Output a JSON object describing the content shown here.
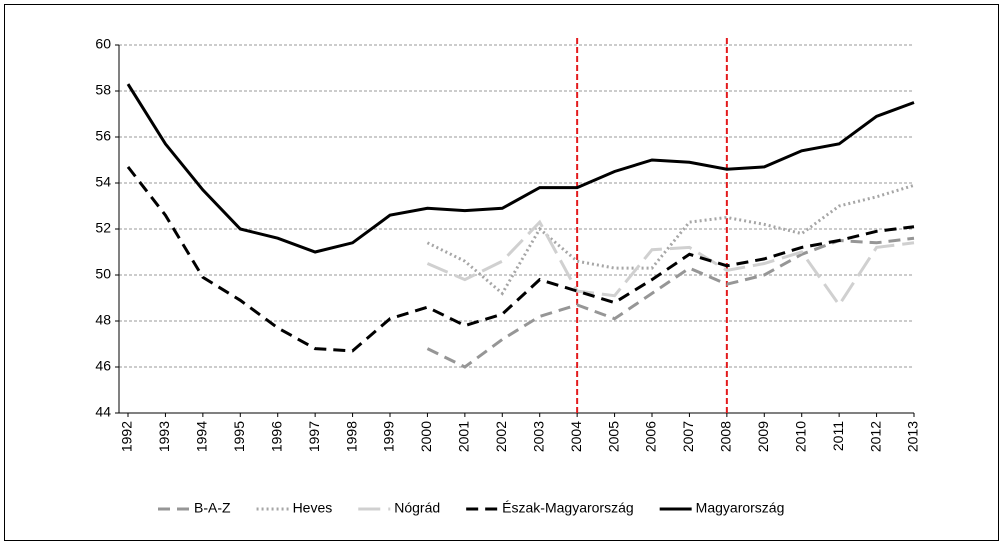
{
  "chart_data": {
    "type": "line",
    "categories": [
      "1992",
      "1993",
      "1994",
      "1995",
      "1996",
      "1997",
      "1998",
      "1999",
      "2000",
      "2001",
      "2002",
      "2003",
      "2004",
      "2005",
      "2006",
      "2007",
      "2008",
      "2009",
      "2010",
      "2011",
      "2012",
      "2013"
    ],
    "series": [
      {
        "name": "B-A-Z",
        "color": "#969696",
        "style": "dashed",
        "values": [
          null,
          null,
          null,
          null,
          null,
          null,
          null,
          null,
          46.8,
          46.0,
          47.2,
          48.2,
          48.7,
          48.1,
          49.2,
          50.3,
          49.6,
          50.0,
          50.9,
          51.5,
          51.4,
          51.6
        ]
      },
      {
        "name": "Heves",
        "color": "#a6a6a6",
        "style": "dotted",
        "values": [
          null,
          null,
          null,
          null,
          null,
          null,
          null,
          null,
          51.4,
          50.6,
          49.2,
          52.0,
          50.6,
          50.3,
          50.3,
          52.3,
          52.5,
          52.2,
          51.8,
          53.0,
          53.4,
          53.9
        ]
      },
      {
        "name": "Nógrád",
        "color": "#d0d0d0",
        "style": "longdash",
        "values": [
          null,
          null,
          null,
          null,
          null,
          null,
          null,
          null,
          50.5,
          49.8,
          50.6,
          52.3,
          49.3,
          49.1,
          51.1,
          51.2,
          50.2,
          50.5,
          51.0,
          48.7,
          51.2,
          51.4
        ]
      },
      {
        "name": "Észak-Magyarország",
        "color": "#000000",
        "style": "dashed",
        "values": [
          54.7,
          52.6,
          49.9,
          48.9,
          47.7,
          46.8,
          46.7,
          48.1,
          48.6,
          47.8,
          48.3,
          49.8,
          49.3,
          48.8,
          49.8,
          50.9,
          50.4,
          50.7,
          51.2,
          51.5,
          51.9,
          52.1
        ]
      },
      {
        "name": "Magyarország",
        "color": "#000000",
        "style": "solid",
        "values": [
          58.3,
          55.7,
          53.7,
          52.0,
          51.6,
          51.0,
          51.4,
          52.6,
          52.9,
          52.8,
          52.9,
          53.8,
          53.8,
          54.5,
          55.0,
          54.9,
          54.6,
          54.7,
          55.4,
          55.7,
          56.9,
          57.5
        ]
      }
    ],
    "ylim": [
      44,
      60
    ],
    "yticks": [
      44,
      46,
      48,
      50,
      52,
      54,
      56,
      58,
      60
    ],
    "grid": true,
    "vlines": [
      "2004",
      "2008"
    ],
    "vline_color": "#e31a1c",
    "legend": "bottom"
  }
}
